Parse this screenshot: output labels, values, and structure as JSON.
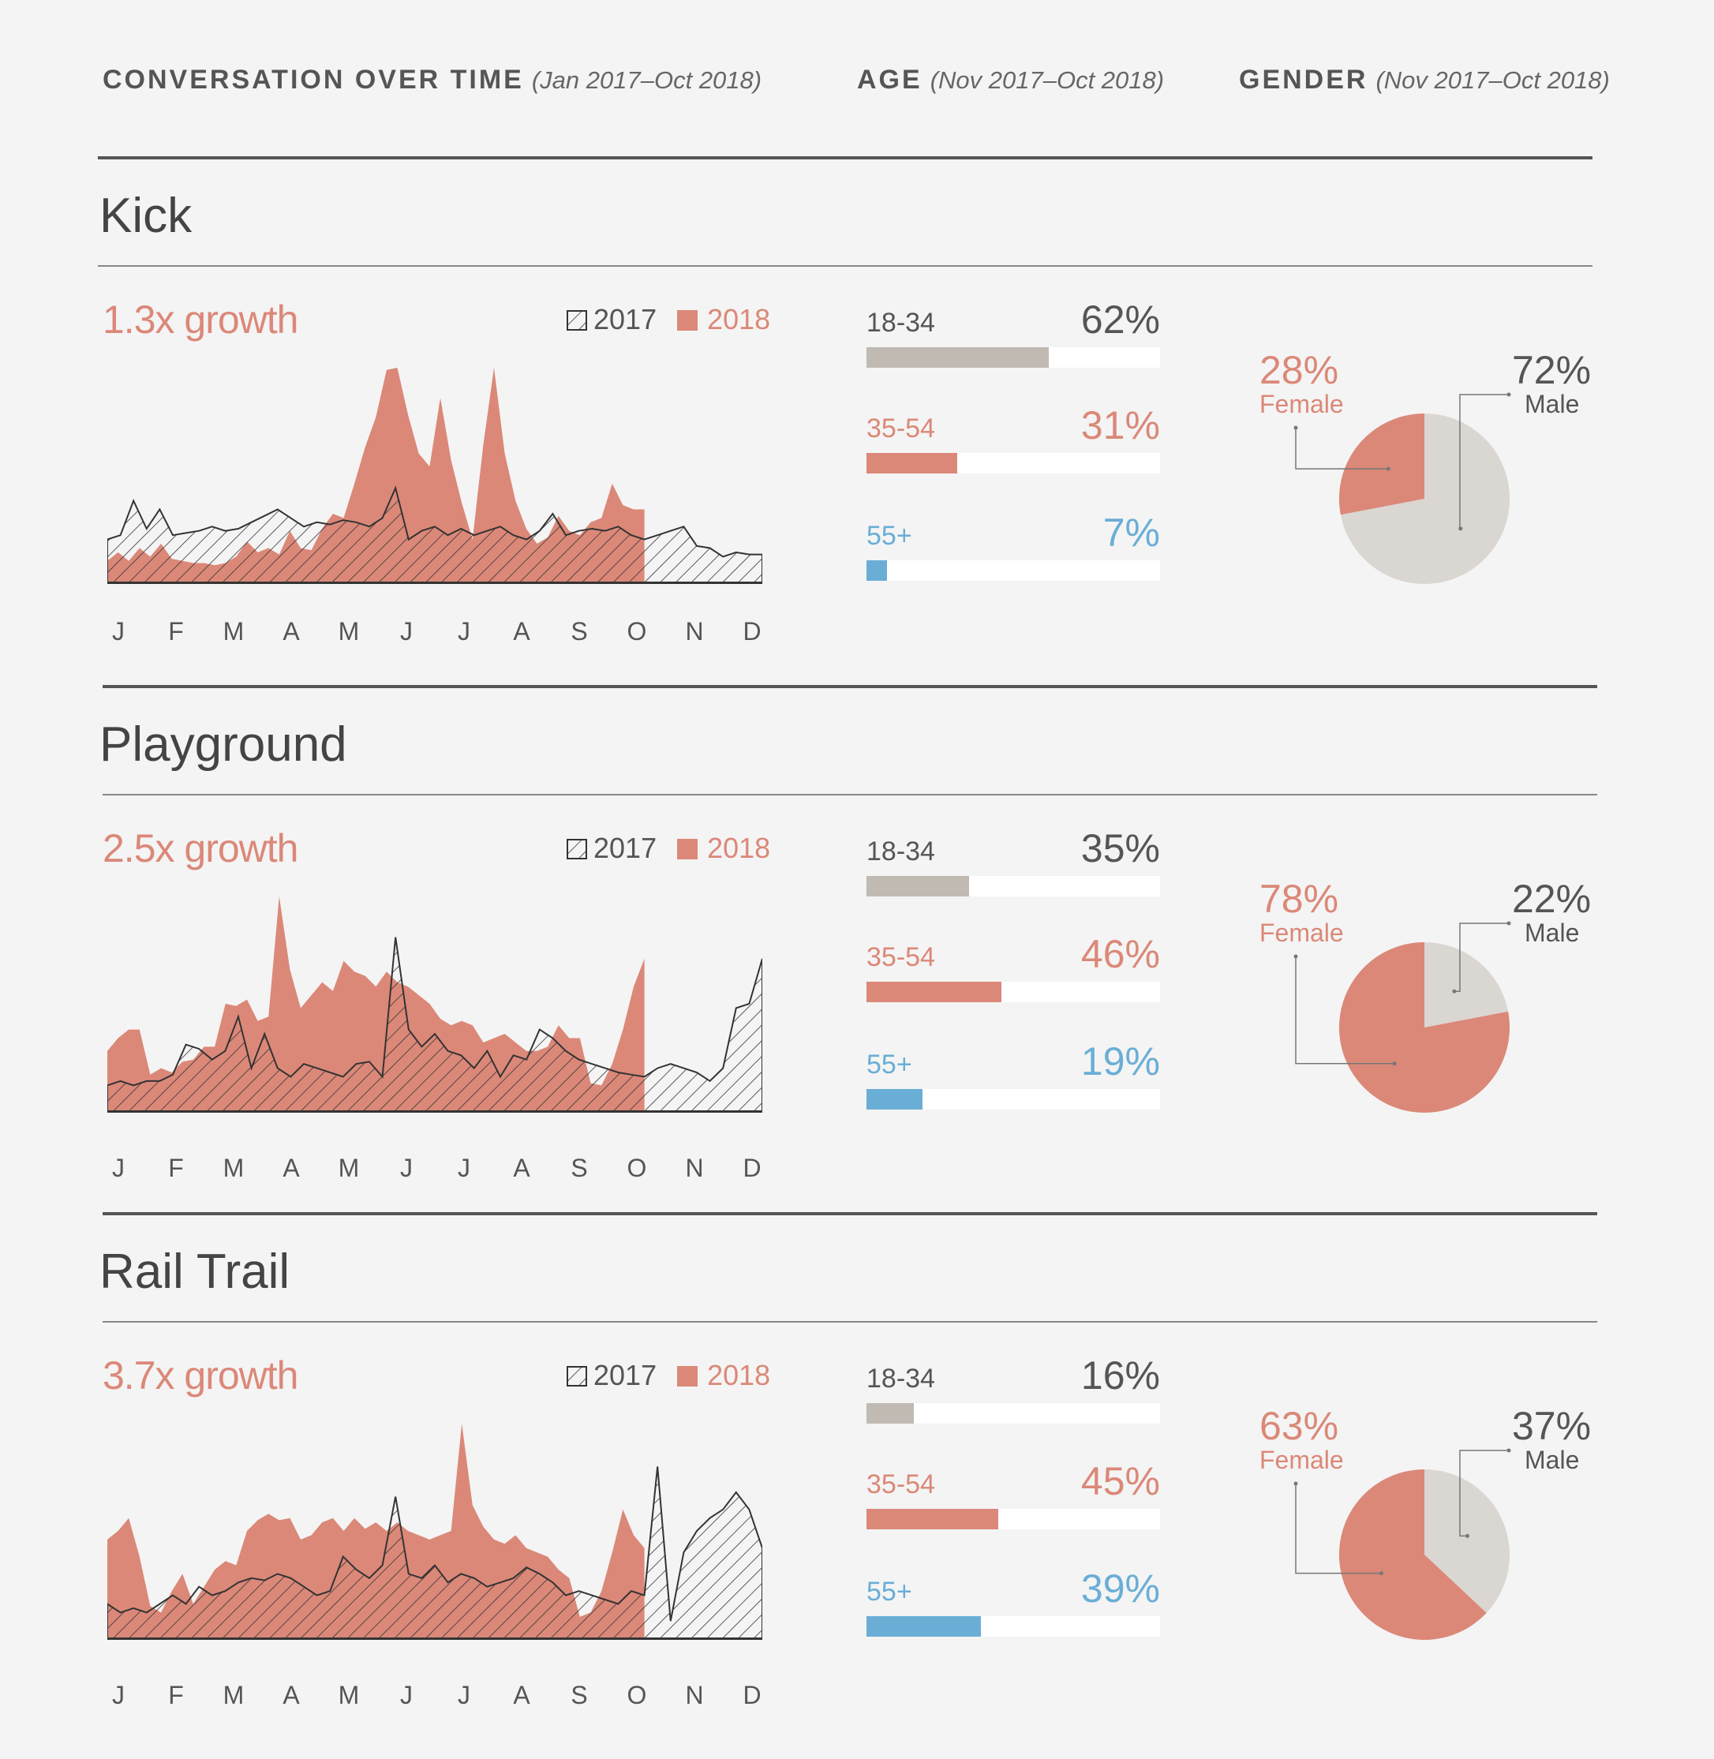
{
  "header": {
    "conversation": {
      "title": "CONVERSATION OVER TIME",
      "range": "(Jan 2017–Oct 2018)"
    },
    "age": {
      "title": "AGE",
      "range": "(Nov 2017–Oct 2018)"
    },
    "gender": {
      "title": "GENDER",
      "range": "(Nov 2017–Oct 2018)"
    }
  },
  "legend": {
    "y2017": "2017",
    "y2018": "2018"
  },
  "months": [
    "J",
    "F",
    "M",
    "A",
    "M",
    "J",
    "J",
    "A",
    "S",
    "O",
    "N",
    "D"
  ],
  "colors": {
    "y2018": "#db8878",
    "age_18_34": "#c0bab3",
    "age_35_54": "#db8878",
    "age_55_plus": "#6aaed6",
    "male": "#dad6d2",
    "female": "#db8878"
  },
  "sections": [
    {
      "title": "Kick",
      "growth": "1.3x growth",
      "age": [
        {
          "label": "18-34",
          "pct": "62%",
          "value": 62
        },
        {
          "label": "35-54",
          "pct": "31%",
          "value": 31
        },
        {
          "label": "55+",
          "pct": "7%",
          "value": 7
        }
      ],
      "gender": {
        "female_pct": "28%",
        "female_label": "Female",
        "female_value": 28,
        "male_pct": "72%",
        "male_label": "Male",
        "male_value": 72
      }
    },
    {
      "title": "Playground",
      "growth": "2.5x growth",
      "age": [
        {
          "label": "18-34",
          "pct": "35%",
          "value": 35
        },
        {
          "label": "35-54",
          "pct": "46%",
          "value": 46
        },
        {
          "label": "55+",
          "pct": "19%",
          "value": 19
        }
      ],
      "gender": {
        "female_pct": "78%",
        "female_label": "Female",
        "female_value": 78,
        "male_pct": "22%",
        "male_label": "Male",
        "male_value": 22
      }
    },
    {
      "title": "Rail Trail",
      "growth": "3.7x growth",
      "age": [
        {
          "label": "18-34",
          "pct": "16%",
          "value": 16
        },
        {
          "label": "35-54",
          "pct": "45%",
          "value": 45
        },
        {
          "label": "55+",
          "pct": "39%",
          "value": 39
        }
      ],
      "gender": {
        "female_pct": "63%",
        "female_label": "Female",
        "female_value": 63,
        "male_pct": "37%",
        "male_label": "Male",
        "male_value": 37
      }
    }
  ],
  "chart_data": [
    {
      "type": "area",
      "title": "Kick",
      "ylim": [
        0,
        100
      ],
      "x_2017": [
        0,
        1,
        2,
        3,
        4,
        5,
        6,
        7,
        8,
        9,
        10,
        11,
        12,
        13,
        14,
        15,
        16,
        17,
        18,
        19,
        20,
        21,
        22,
        23,
        24,
        25,
        26,
        27,
        28,
        29,
        30,
        31,
        32,
        33,
        34,
        35,
        36,
        37,
        38,
        39,
        40,
        41,
        42,
        43,
        44,
        45,
        46,
        47,
        48,
        49,
        50
      ],
      "series_2017": [
        20,
        22,
        38,
        25,
        34,
        22,
        23,
        24,
        26,
        24,
        25,
        28,
        31,
        34,
        30,
        26,
        28,
        27,
        29,
        28,
        26,
        30,
        44,
        20,
        24,
        26,
        22,
        25,
        22,
        24,
        26,
        22,
        20,
        24,
        32,
        22,
        24,
        25,
        24,
        26,
        22,
        20,
        22,
        24,
        26,
        17,
        16,
        12,
        14,
        13,
        13
      ],
      "x_2018": [
        0,
        1,
        2,
        3,
        4,
        5,
        6,
        7,
        8,
        9,
        10,
        11,
        12,
        13,
        14,
        15,
        16,
        17,
        18,
        19,
        20,
        21,
        22,
        23,
        24,
        25,
        26,
        27,
        28,
        29,
        30,
        31,
        32,
        33,
        34,
        35,
        36,
        37,
        38,
        39,
        40,
        41,
        42,
        43,
        44,
        45,
        46,
        47,
        48,
        49,
        50
      ],
      "series_2018": [
        10,
        14,
        10,
        16,
        12,
        18,
        11,
        10,
        9,
        9,
        8,
        9,
        12,
        19,
        14,
        16,
        13,
        24,
        16,
        15,
        25,
        32,
        30,
        46,
        63,
        77,
        99,
        100,
        78,
        60,
        54,
        86,
        57,
        37,
        20,
        64,
        100,
        60,
        38,
        25,
        18,
        21,
        31,
        24,
        22,
        28,
        30,
        46,
        36,
        34,
        34
      ]
    },
    {
      "type": "area",
      "title": "Playground",
      "ylim": [
        0,
        100
      ],
      "x_2017": [
        0,
        1,
        2,
        3,
        4,
        5,
        6,
        7,
        8,
        9,
        10,
        11,
        12,
        13,
        14,
        15,
        16,
        17,
        18,
        19,
        20,
        21,
        22,
        23,
        24,
        25,
        26,
        27,
        28,
        29,
        30,
        31,
        32,
        33,
        34,
        35,
        36,
        37,
        38,
        39,
        40,
        41,
        42,
        43,
        44,
        45,
        46,
        47,
        48,
        49,
        50
      ],
      "series_2017": [
        12,
        14,
        12,
        14,
        14,
        17,
        31,
        29,
        24,
        28,
        44,
        20,
        36,
        20,
        16,
        22,
        20,
        18,
        16,
        22,
        23,
        16,
        81,
        38,
        30,
        36,
        28,
        26,
        20,
        28,
        16,
        26,
        24,
        38,
        34,
        28,
        24,
        22,
        20,
        18,
        17,
        16,
        20,
        22,
        20,
        18,
        14,
        20,
        48,
        50,
        71
      ],
      "x_2018": [
        0,
        1,
        2,
        3,
        4,
        5,
        6,
        7,
        8,
        9,
        10,
        11,
        12,
        13,
        14,
        15,
        16,
        17,
        18,
        19,
        20,
        21,
        22,
        23,
        24,
        25,
        26,
        27,
        28,
        29,
        30,
        31,
        32,
        33,
        34,
        35,
        36,
        37,
        38,
        39,
        40,
        41,
        42,
        43,
        44,
        45,
        46,
        47,
        48,
        49,
        50
      ],
      "series_2018": [
        28,
        34,
        38,
        38,
        17,
        20,
        18,
        23,
        24,
        30,
        30,
        50,
        49,
        52,
        42,
        44,
        100,
        66,
        48,
        54,
        60,
        56,
        70,
        65,
        63,
        58,
        65,
        60,
        58,
        54,
        50,
        43,
        40,
        42,
        40,
        32,
        34,
        36,
        32,
        28,
        28,
        30,
        40,
        34,
        34,
        13,
        12,
        22,
        38,
        58,
        71
      ]
    },
    {
      "type": "area",
      "title": "Rail Trail",
      "ylim": [
        0,
        100
      ],
      "x_2017": [
        0,
        1,
        2,
        3,
        4,
        5,
        6,
        7,
        8,
        9,
        10,
        11,
        12,
        13,
        14,
        15,
        16,
        17,
        18,
        19,
        20,
        21,
        22,
        23,
        24,
        25,
        26,
        27,
        28,
        29,
        30,
        31,
        32,
        33,
        34,
        35,
        36,
        37,
        38,
        39,
        40,
        41,
        42,
        43,
        44,
        45,
        46,
        47,
        48,
        49,
        50
      ],
      "series_2017": [
        16,
        12,
        14,
        12,
        16,
        20,
        16,
        24,
        20,
        22,
        26,
        28,
        27,
        30,
        28,
        24,
        20,
        22,
        38,
        32,
        28,
        34,
        66,
        30,
        28,
        34,
        26,
        30,
        28,
        24,
        26,
        28,
        33,
        30,
        26,
        20,
        22,
        20,
        18,
        16,
        22,
        20,
        80,
        8,
        40,
        50,
        56,
        60,
        68,
        60,
        42
      ],
      "x_2018": [
        0,
        1,
        2,
        3,
        4,
        5,
        6,
        7,
        8,
        9,
        10,
        11,
        12,
        13,
        14,
        15,
        16,
        17,
        18,
        19,
        20,
        21,
        22,
        23,
        24,
        25,
        26,
        27,
        28,
        29,
        30,
        31,
        32,
        33,
        34,
        35,
        36,
        37,
        38,
        39,
        40,
        41,
        42,
        43,
        44,
        45,
        46,
        47,
        48,
        49,
        50
      ],
      "series_2018": [
        46,
        50,
        56,
        38,
        15,
        12,
        22,
        30,
        16,
        24,
        32,
        36,
        34,
        50,
        55,
        58,
        55,
        56,
        46,
        48,
        54,
        56,
        50,
        56,
        51,
        54,
        50,
        54,
        50,
        48,
        46,
        48,
        50,
        100,
        62,
        52,
        46,
        44,
        48,
        42,
        40,
        38,
        32,
        28,
        10,
        12,
        22,
        40,
        60,
        48,
        42
      ]
    }
  ]
}
